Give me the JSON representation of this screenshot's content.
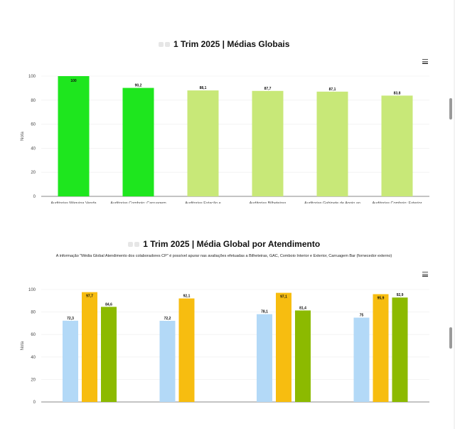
{
  "chart_data": [
    {
      "type": "bar",
      "title": "1 Trim 2025 | Médias Globais",
      "ylabel": "Nota",
      "ylim": [
        0,
        100
      ],
      "yticks": [
        0,
        20,
        40,
        60,
        80,
        100
      ],
      "grid": true,
      "categories": [
        "Auditorias Máquina Venda",
        "Auditorias Comboio: Carruagem",
        "Auditorias Estação e",
        "Auditorias Bilheteiras",
        "Auditorias Gabinete de Apoio ao",
        "Auditorias Comboio: Exterior"
      ],
      "values": [
        100,
        90.2,
        88.1,
        87.7,
        87.1,
        83.8
      ],
      "value_labels": [
        "100",
        "90,2",
        "88,1",
        "87,7",
        "87,1",
        "83,8"
      ],
      "bar_colors": [
        "#1ee61e",
        "#1ee61e",
        "#c8e878",
        "#c8e878",
        "#c8e878",
        "#c8e878"
      ]
    },
    {
      "type": "bar",
      "title": "1 Trim 2025 | Média Global por Atendimento",
      "subtitle": "A informação \"Média Global Atendimento dos colaboradores CP\" é possível apurar nas avaliações efetuadas a Bilheteiras, GAC, Comboio Interior e Exterior, Carruagem Bar (fornecedor externo)",
      "ylabel": "Nota",
      "ylim": [
        0,
        100
      ],
      "yticks": [
        0,
        20,
        40,
        60,
        80,
        100
      ],
      "grid": true,
      "groups": [
        {
          "bars": [
            {
              "value": 72.3,
              "label": "72,3",
              "color": "#b3d9f7"
            },
            {
              "value": 97.7,
              "label": "97,7",
              "color": "#f7bd10"
            },
            {
              "value": 84.6,
              "label": "84,6",
              "color": "#8cba00"
            }
          ]
        },
        {
          "bars": [
            {
              "value": 72.2,
              "label": "72,2",
              "color": "#b3d9f7"
            },
            {
              "value": 92.1,
              "label": "92,1",
              "color": "#f7bd10"
            }
          ]
        },
        {
          "bars": [
            {
              "value": 78.1,
              "label": "78,1",
              "color": "#b3d9f7"
            },
            {
              "value": 97.1,
              "label": "97,1",
              "color": "#f7bd10"
            },
            {
              "value": 81.4,
              "label": "81,4",
              "color": "#8cba00"
            }
          ]
        },
        {
          "bars": [
            {
              "value": 75,
              "label": "75",
              "color": "#b3d9f7"
            },
            {
              "value": 95.9,
              "label": "95,9",
              "color": "#f7bd10"
            },
            {
              "value": 92.9,
              "label": "92,9",
              "color": "#8cba00"
            }
          ]
        }
      ]
    }
  ]
}
